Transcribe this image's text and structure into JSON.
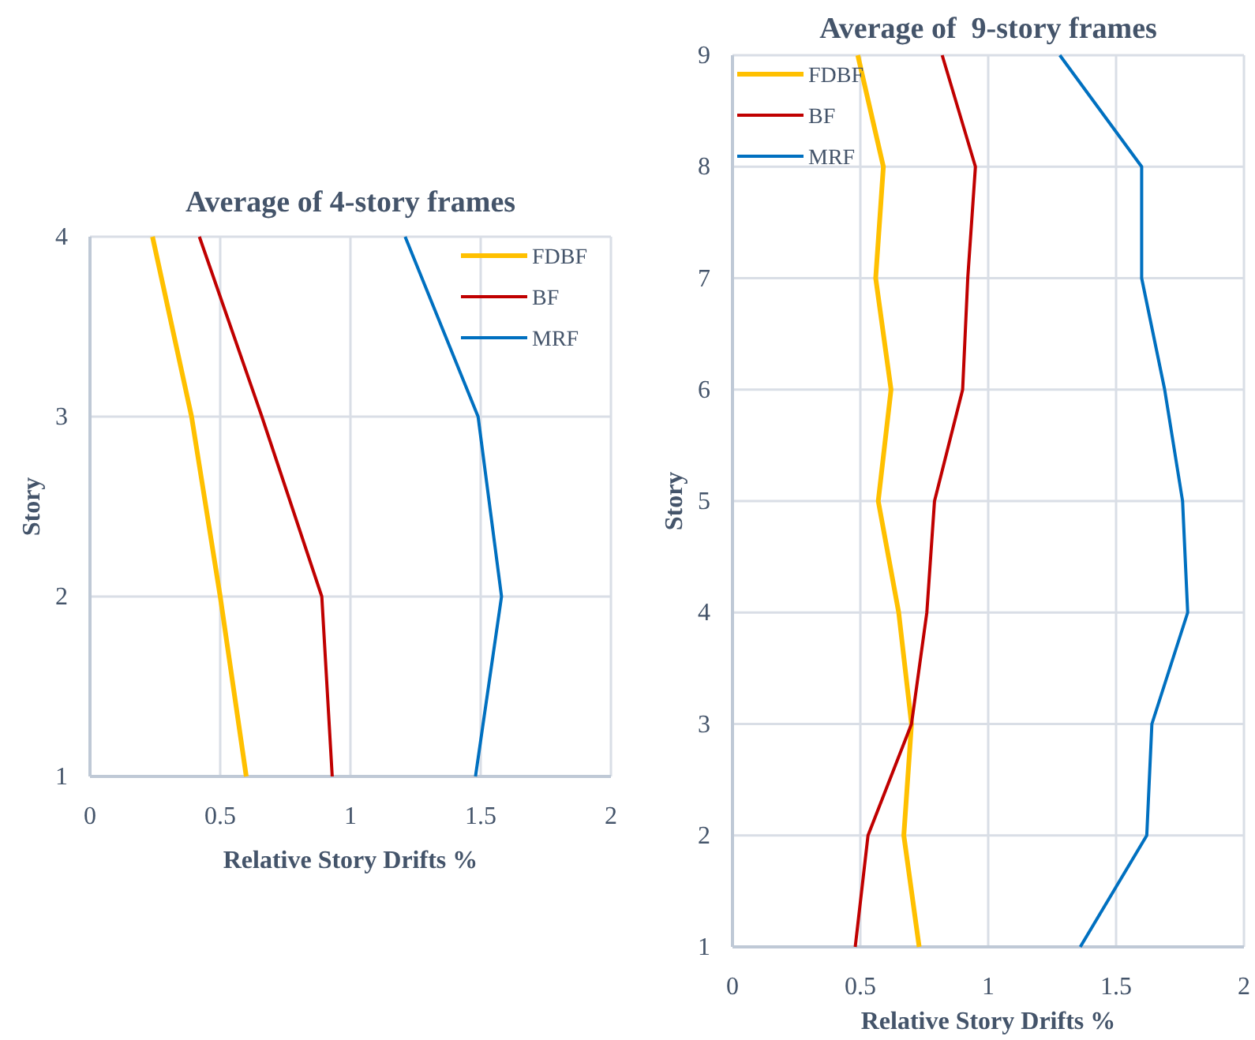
{
  "chart_data": [
    {
      "type": "line",
      "title": "Average of 4-story frames",
      "xlabel": "Relative Story Drifts %",
      "ylabel": "Story",
      "xlim": [
        0,
        2
      ],
      "xticks": [
        0,
        0.5,
        1,
        1.5,
        2
      ],
      "ylim": [
        1,
        4
      ],
      "yticks": [
        1,
        2,
        3,
        4
      ],
      "grid": true,
      "legend": "top right",
      "series": [
        {
          "name": "FDBF",
          "color": "#ffc000",
          "x": [
            0.6,
            0.5,
            0.39,
            0.24
          ],
          "values": [
            1,
            2,
            3,
            4
          ]
        },
        {
          "name": "BF",
          "color": "#c00000",
          "x": [
            0.93,
            0.89,
            0.66,
            0.42
          ],
          "values": [
            1,
            2,
            3,
            4
          ]
        },
        {
          "name": "MRF",
          "color": "#0070c0",
          "x": [
            1.48,
            1.58,
            1.49,
            1.21
          ],
          "values": [
            1,
            2,
            3,
            4
          ]
        }
      ]
    },
    {
      "type": "line",
      "title": "Average of  9-story frames",
      "xlabel": "Relative Story Drifts %",
      "ylabel": "Story",
      "xlim": [
        0,
        2
      ],
      "xticks": [
        0,
        0.5,
        1,
        1.5,
        2
      ],
      "ylim": [
        1,
        9
      ],
      "yticks": [
        1,
        2,
        3,
        4,
        5,
        6,
        7,
        8,
        9
      ],
      "grid": true,
      "legend": "top left",
      "series": [
        {
          "name": "FDBF",
          "color": "#ffc000",
          "x": [
            0.73,
            0.67,
            0.7,
            0.65,
            0.57,
            0.62,
            0.56,
            0.59,
            0.49
          ],
          "values": [
            1,
            2,
            3,
            4,
            5,
            6,
            7,
            8,
            9
          ]
        },
        {
          "name": "BF",
          "color": "#c00000",
          "x": [
            0.48,
            0.53,
            0.7,
            0.76,
            0.79,
            0.9,
            0.92,
            0.95,
            0.82
          ],
          "values": [
            1,
            2,
            3,
            4,
            5,
            6,
            7,
            8,
            9
          ]
        },
        {
          "name": "MRF",
          "color": "#0070c0",
          "x": [
            1.36,
            1.62,
            1.64,
            1.78,
            1.76,
            1.69,
            1.6,
            1.6,
            1.28
          ],
          "values": [
            1,
            2,
            3,
            4,
            5,
            6,
            7,
            8,
            9
          ]
        }
      ]
    }
  ]
}
